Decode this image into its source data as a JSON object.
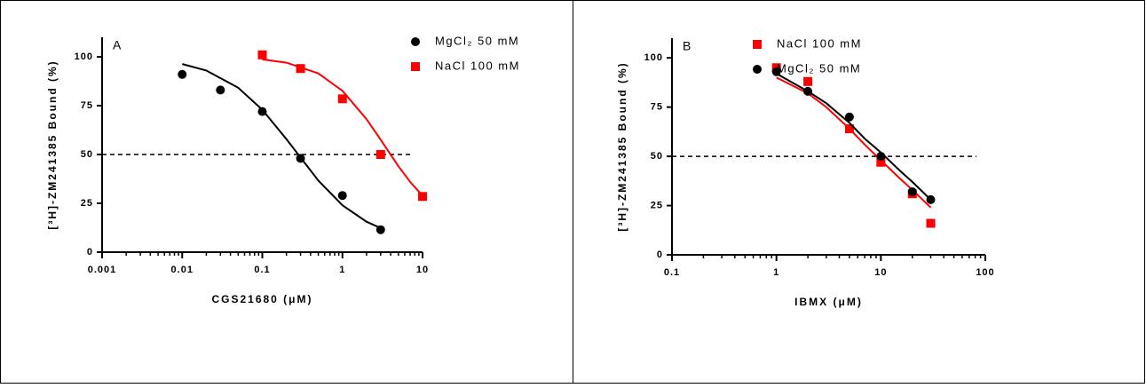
{
  "chart_data": [
    {
      "type": "scatter",
      "panel_label": "A",
      "x_label": "CGS21680 (μM)",
      "y_label": "[³H]-ZM241385 Bound (%)",
      "log_x": true,
      "minor_ticks": true,
      "xlim": [
        0.001,
        10
      ],
      "xticks": [
        0.001,
        0.01,
        0.1,
        1,
        10
      ],
      "ylim": [
        0,
        110
      ],
      "yticks": [
        0,
        25,
        50,
        75,
        100
      ],
      "reference_line": 50,
      "series": [
        {
          "name": "MgCl₂ 50 mM",
          "color": "#000000",
          "marker": "circle",
          "x": [
            0.01,
            0.03,
            0.1,
            0.3,
            1,
            3
          ],
          "values": [
            91,
            83,
            72,
            48,
            29,
            11.5
          ],
          "fit": {
            "x": [
              0.01,
              0.02,
              0.05,
              0.1,
              0.2,
              0.5,
              1,
              2,
              3
            ],
            "values": [
              96.3,
              93,
              84.2,
              72.9,
              57.8,
              36.7,
              24,
              15.6,
              12.3
            ]
          }
        },
        {
          "name": "NaCl 100 mM",
          "color": "#ff0000",
          "marker": "square",
          "x": [
            0.1,
            0.3,
            1,
            3,
            10
          ],
          "values": [
            101,
            94,
            78.5,
            50,
            28.5
          ],
          "fit": {
            "x": [
              0.1,
              0.2,
              0.5,
              1,
              2,
              3,
              5,
              7,
              10
            ],
            "values": [
              98.7,
              97,
              91.5,
              82.6,
              68.1,
              57.6,
              44,
              36,
              28.8
            ]
          }
        }
      ]
    },
    {
      "type": "scatter",
      "panel_label": "B",
      "x_label": "IBMX (μM)",
      "y_label": "[³H]-ZM241385 Bound (%)",
      "log_x": true,
      "minor_ticks": true,
      "xlim": [
        0.1,
        100
      ],
      "xticks": [
        0.1,
        1,
        10,
        100
      ],
      "ylim": [
        0,
        110
      ],
      "yticks": [
        0,
        25,
        50,
        75,
        100
      ],
      "reference_line": 50,
      "series": [
        {
          "name": "NaCl 100 mM",
          "color": "#ff0000",
          "marker": "square",
          "x": [
            1,
            2,
            5,
            10,
            20,
            30
          ],
          "values": [
            95,
            88,
            64,
            47,
            31,
            16
          ],
          "fit": {
            "x": [
              1,
              2,
              3,
              5,
              7,
              10,
              15,
              20,
              30
            ],
            "values": [
              90,
              82,
              75,
              64,
              56,
              48,
              39,
              33,
              24
            ]
          }
        },
        {
          "name": "MgCl₂ 50 mM",
          "color": "#000000",
          "marker": "circle",
          "x": [
            1,
            2,
            5,
            10,
            20,
            30
          ],
          "values": [
            93,
            83,
            70,
            50,
            32,
            28
          ],
          "fit": {
            "x": [
              1,
              2,
              3,
              5,
              7,
              10,
              15,
              20,
              30
            ],
            "values": [
              92,
              83,
              77,
              67,
              59,
              52,
              43,
              37,
              28
            ]
          }
        }
      ]
    }
  ]
}
